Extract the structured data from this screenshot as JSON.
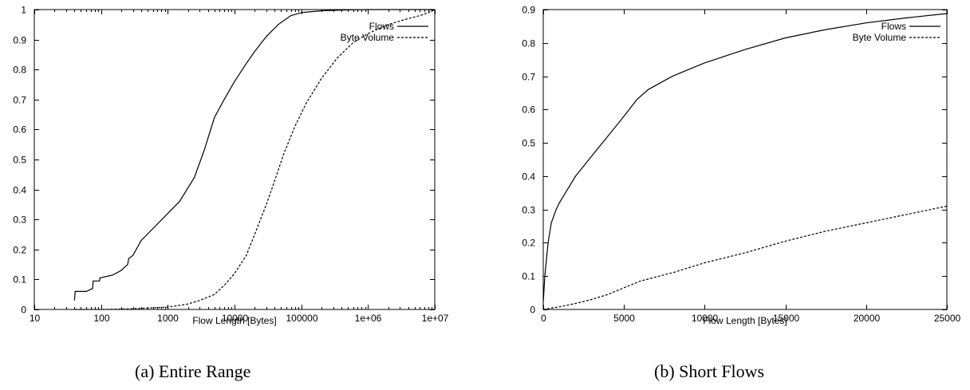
{
  "chart_data": [
    {
      "type": "line",
      "caption": "(a) Entire Range",
      "xlabel": "Flow Length [Bytes]",
      "ylabel": "",
      "xscale": "log",
      "xlim": [
        10,
        10000000
      ],
      "ylim": [
        0,
        1
      ],
      "xticks": [
        10,
        100,
        1000,
        10000,
        100000,
        1000000,
        10000000
      ],
      "xtick_labels": [
        "10",
        "100",
        "1000",
        "10000",
        "100000",
        "1e+06",
        "1e+07"
      ],
      "yticks": [
        0,
        0.1,
        0.2,
        0.3,
        0.4,
        0.5,
        0.6,
        0.7,
        0.8,
        0.9,
        1
      ],
      "ytick_labels": [
        "0",
        "0.1",
        "0.2",
        "0.3",
        "0.4",
        "0.5",
        "0.6",
        "0.7",
        "0.8",
        "0.9",
        "1"
      ],
      "legend_position": "top-right",
      "grid": false,
      "series": [
        {
          "name": "Flows",
          "style": "solid",
          "points": [
            [
              40,
              0.03
            ],
            [
              41,
              0.06
            ],
            [
              60,
              0.06
            ],
            [
              75,
              0.07
            ],
            [
              76,
              0.095
            ],
            [
              95,
              0.095
            ],
            [
              96,
              0.105
            ],
            [
              150,
              0.115
            ],
            [
              200,
              0.13
            ],
            [
              250,
              0.15
            ],
            [
              260,
              0.17
            ],
            [
              300,
              0.18
            ],
            [
              400,
              0.23
            ],
            [
              600,
              0.27
            ],
            [
              1000,
              0.32
            ],
            [
              1500,
              0.36
            ],
            [
              2500,
              0.44
            ],
            [
              3500,
              0.53
            ],
            [
              5000,
              0.64
            ],
            [
              7000,
              0.7
            ],
            [
              10000,
              0.76
            ],
            [
              15000,
              0.82
            ],
            [
              20000,
              0.86
            ],
            [
              30000,
              0.91
            ],
            [
              45000,
              0.95
            ],
            [
              70000,
              0.98
            ],
            [
              100000,
              0.99
            ],
            [
              200000,
              0.996
            ],
            [
              500000,
              0.999
            ],
            [
              1000000,
              1.0
            ],
            [
              10000000,
              1.0
            ]
          ]
        },
        {
          "name": "Byte Volume",
          "style": "dashed",
          "points": [
            [
              40,
              0.0
            ],
            [
              100,
              0.0
            ],
            [
              300,
              0.002
            ],
            [
              1000,
              0.008
            ],
            [
              2000,
              0.018
            ],
            [
              3000,
              0.03
            ],
            [
              5000,
              0.05
            ],
            [
              7000,
              0.08
            ],
            [
              10000,
              0.12
            ],
            [
              15000,
              0.18
            ],
            [
              20000,
              0.25
            ],
            [
              30000,
              0.35
            ],
            [
              40000,
              0.43
            ],
            [
              55000,
              0.52
            ],
            [
              80000,
              0.61
            ],
            [
              120000,
              0.69
            ],
            [
              200000,
              0.77
            ],
            [
              350000,
              0.84
            ],
            [
              600000,
              0.89
            ],
            [
              1000000,
              0.92
            ],
            [
              2000000,
              0.95
            ],
            [
              4000000,
              0.97
            ],
            [
              6000000,
              0.98
            ],
            [
              8000000,
              0.99
            ],
            [
              10000000,
              1.0
            ]
          ]
        }
      ]
    },
    {
      "type": "line",
      "caption": "(b) Short Flows",
      "xlabel": "Flow Length [Bytes]",
      "ylabel": "",
      "xscale": "linear",
      "xlim": [
        0,
        25000
      ],
      "ylim": [
        0,
        0.9
      ],
      "xticks": [
        0,
        5000,
        10000,
        15000,
        20000,
        25000
      ],
      "xtick_labels": [
        "0",
        "5000",
        "10000",
        "15000",
        "20000",
        "25000"
      ],
      "yticks": [
        0,
        0.1,
        0.2,
        0.3,
        0.4,
        0.5,
        0.6,
        0.7,
        0.8,
        0.9
      ],
      "ytick_labels": [
        "0",
        "0.1",
        "0.2",
        "0.3",
        "0.4",
        "0.5",
        "0.6",
        "0.7",
        "0.8",
        "0.9"
      ],
      "legend_position": "top-right",
      "grid": false,
      "series": [
        {
          "name": "Flows",
          "style": "solid",
          "points": [
            [
              0,
              0.02
            ],
            [
              100,
              0.1
            ],
            [
              300,
              0.2
            ],
            [
              500,
              0.26
            ],
            [
              800,
              0.3
            ],
            [
              1000,
              0.32
            ],
            [
              1500,
              0.36
            ],
            [
              2000,
              0.4
            ],
            [
              2500,
              0.43
            ],
            [
              3000,
              0.46
            ],
            [
              3500,
              0.49
            ],
            [
              4000,
              0.52
            ],
            [
              5000,
              0.58
            ],
            [
              5800,
              0.63
            ],
            [
              6500,
              0.66
            ],
            [
              8000,
              0.7
            ],
            [
              10000,
              0.74
            ],
            [
              12500,
              0.78
            ],
            [
              15000,
              0.815
            ],
            [
              17500,
              0.84
            ],
            [
              20000,
              0.86
            ],
            [
              22500,
              0.875
            ],
            [
              25000,
              0.888
            ]
          ]
        },
        {
          "name": "Byte Volume",
          "style": "dashed",
          "points": [
            [
              0,
              0.0
            ],
            [
              1000,
              0.008
            ],
            [
              2000,
              0.018
            ],
            [
              3000,
              0.03
            ],
            [
              4000,
              0.045
            ],
            [
              5000,
              0.065
            ],
            [
              6000,
              0.085
            ],
            [
              8000,
              0.11
            ],
            [
              10000,
              0.14
            ],
            [
              12500,
              0.17
            ],
            [
              15000,
              0.205
            ],
            [
              17500,
              0.235
            ],
            [
              20000,
              0.26
            ],
            [
              22500,
              0.285
            ],
            [
              25000,
              0.31
            ]
          ]
        }
      ]
    }
  ]
}
